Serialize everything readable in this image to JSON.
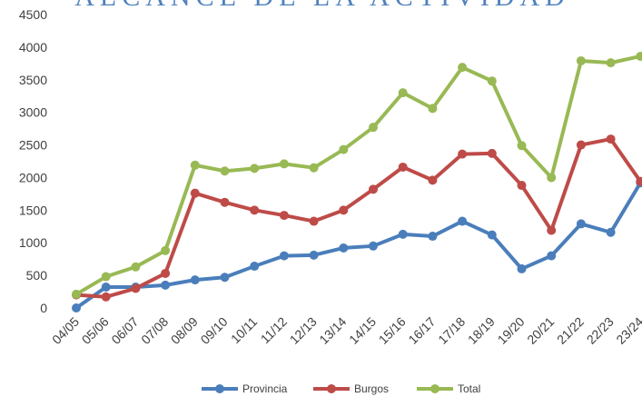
{
  "chart_data": {
    "type": "line",
    "title": "ALCANCE DE LA ACTIVIDAD",
    "categories": [
      "04/05",
      "05/06",
      "06/07",
      "07/08",
      "08/09",
      "09/10",
      "10/11",
      "11/12",
      "12/13",
      "13/14",
      "14/15",
      "15/16",
      "16/17",
      "17/18",
      "18/19",
      "19/20",
      "20/21",
      "21/22",
      "22/23",
      "23/24"
    ],
    "series": [
      {
        "name": "Provincia",
        "color": "#4a7ebb",
        "values": [
          0,
          320,
          320,
          350,
          430,
          470,
          640,
          800,
          810,
          920,
          950,
          1130,
          1100,
          1330,
          1120,
          600,
          800,
          1290,
          1160,
          1920
        ]
      },
      {
        "name": "Burgos",
        "color": "#be4b48",
        "values": [
          200,
          170,
          300,
          530,
          1760,
          1620,
          1500,
          1420,
          1330,
          1500,
          1820,
          2160,
          1960,
          2360,
          2370,
          1880,
          1190,
          2500,
          2590,
          1940
        ]
      },
      {
        "name": "Total",
        "color": "#98b954",
        "values": [
          210,
          480,
          630,
          880,
          2190,
          2100,
          2140,
          2210,
          2150,
          2430,
          2770,
          3300,
          3060,
          3690,
          3480,
          2490,
          2000,
          3790,
          3760,
          3860
        ]
      }
    ],
    "ylim": [
      0,
      4500
    ],
    "yticks": [
      0,
      500,
      1000,
      1500,
      2000,
      2500,
      3000,
      3500,
      4000,
      4500
    ],
    "grid": false,
    "legend": "bottom"
  }
}
